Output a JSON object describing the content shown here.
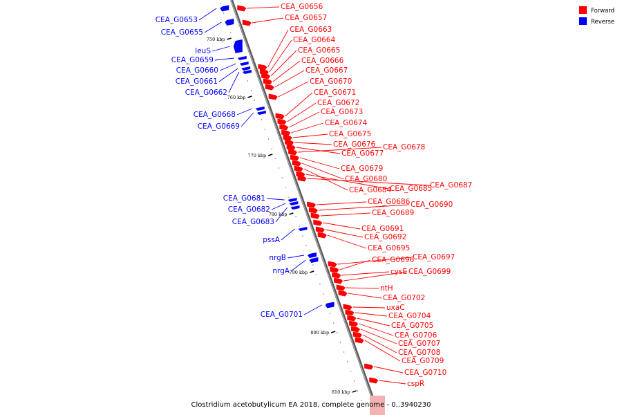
{
  "legend": {
    "items": [
      {
        "label": "Forward",
        "color": "#ff0000"
      },
      {
        "label": "Reverse",
        "color": "#0000ff"
      }
    ]
  },
  "caption": "Clostridium acetobutylicum EA 2018, complete genome - 0..3940230",
  "colors": {
    "forward": "#ff0000",
    "reverse": "#0000ff",
    "backbone": "#888888"
  },
  "axis_ticks": [
    "750 kbp",
    "760 kbp",
    "770 kbp",
    "780 kbp",
    "790 kbp",
    "800 kbp",
    "810 kbp"
  ],
  "forward_genes": [
    "CEA_G0656",
    "CEA_G0657",
    "CEA_G0663",
    "CEA_G0664",
    "CEA_G0665",
    "CEA_G0666",
    "CEA_G0667",
    "CEA_G0670",
    "CEA_G0671",
    "CEA_G0672",
    "CEA_G0673",
    "CEA_G0674",
    "CEA_G0675",
    "CEA_G0676",
    "CEA_G0677",
    "CEA_G0678",
    "CEA_G0679",
    "CEA_G0680",
    "CEA_G0684",
    "CEA_G0685",
    "CEA_G0687",
    "CEA_G0686",
    "CEA_G0690",
    "CEA_G0689",
    "CEA_G0691",
    "CEA_G0692",
    "CEA_G0695",
    "CEA_G0697",
    "CEA_G0696",
    "cysE",
    "CEA_G0699",
    "ntH",
    "CEA_G0702",
    "uxaC",
    "CEA_G0704",
    "CEA_G0705",
    "CEA_G0706",
    "CEA_G0707",
    "CEA_G0708",
    "CEA_G0709",
    "CEA_G0710",
    "cspR"
  ],
  "reverse_genes": [
    "CEA_G0653",
    "CEA_G0655",
    "leuS",
    "CEA_G0659",
    "CEA_G0660",
    "CEA_G0661",
    "CEA_G0662",
    "CEA_G0668",
    "CEA_G0669",
    "CEA_G0681",
    "CEA_G0682",
    "CEA_G0683",
    "pssA",
    "nrgB",
    "nrgA",
    "CEA_G0701"
  ]
}
